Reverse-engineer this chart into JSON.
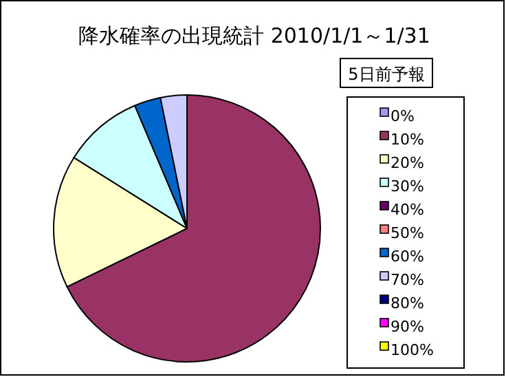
{
  "chart_data": {
    "type": "pie",
    "title": "降水確率の出現統計 2010/1/1～1/31",
    "legend_title": "5日前予報",
    "legend": "right",
    "categories": [
      "0%",
      "10%",
      "20%",
      "30%",
      "40%",
      "50%",
      "60%",
      "70%",
      "80%",
      "90%",
      "100%"
    ],
    "values": [
      0,
      67.8,
      16.1,
      9.7,
      0,
      0,
      3.2,
      3.2,
      0,
      0,
      0
    ],
    "colors": [
      "#9999ff",
      "#993366",
      "#ffffcc",
      "#ccffff",
      "#660066",
      "#ff8080",
      "#0066cc",
      "#ccccff",
      "#000080",
      "#ff00ff",
      "#ffff00"
    ]
  }
}
